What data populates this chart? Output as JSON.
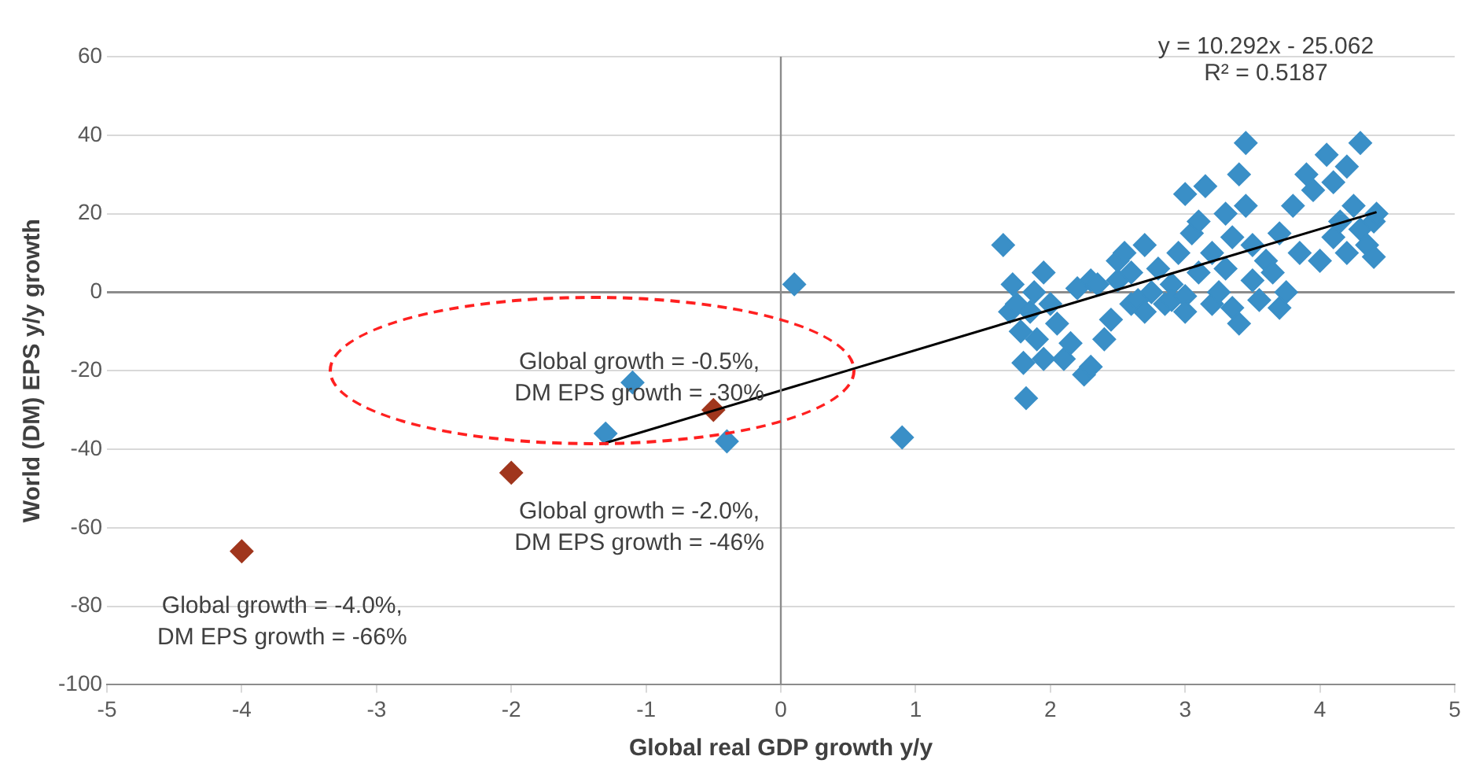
{
  "chart_data": {
    "type": "scatter",
    "xlabel": "Global real GDP growth y/y",
    "ylabel": "World (DM) EPS y/y growth",
    "xlim": [
      -5,
      5
    ],
    "xticks": [
      -5,
      -4,
      -3,
      -2,
      -1,
      0,
      1,
      2,
      3,
      4,
      5
    ],
    "ylim": [
      -100,
      60
    ],
    "yticks": [
      -100,
      -80,
      -60,
      -40,
      -20,
      0,
      20,
      40,
      60
    ],
    "grid": "y",
    "legend": false,
    "marker": "diamond",
    "series": [
      {
        "color": "#3a8fc7",
        "x": [
          -1.3,
          -1.1,
          -0.4,
          0.1,
          0.9,
          1.65,
          1.7,
          1.72,
          1.75,
          1.78,
          1.8,
          1.82,
          1.85,
          1.88,
          1.9,
          1.95,
          1.95,
          2.0,
          2.05,
          2.1,
          2.15,
          2.2,
          2.25,
          2.3,
          2.3,
          2.35,
          2.4,
          2.45,
          2.5,
          2.5,
          2.55,
          2.6,
          2.6,
          2.65,
          2.7,
          2.7,
          2.75,
          2.8,
          2.85,
          2.9,
          2.9,
          2.95,
          3.0,
          3.0,
          3.0,
          3.05,
          3.1,
          3.1,
          3.15,
          3.2,
          3.2,
          3.25,
          3.3,
          3.3,
          3.35,
          3.35,
          3.4,
          3.4,
          3.45,
          3.45,
          3.5,
          3.5,
          3.55,
          3.6,
          3.65,
          3.7,
          3.7,
          3.75,
          3.8,
          3.85,
          3.9,
          3.95,
          4.0,
          4.05,
          4.1,
          4.1,
          4.15,
          4.2,
          4.2,
          4.25,
          4.3,
          4.3,
          4.35,
          4.4,
          4.4,
          4.42
        ],
        "values": [
          -36,
          -23,
          -38,
          2,
          -37,
          12,
          -5,
          2,
          -3,
          -10,
          -18,
          -27,
          -5,
          0,
          -12,
          5,
          -17,
          -3,
          -8,
          -17,
          -13,
          1,
          -21,
          -19,
          3,
          2,
          -12,
          -7,
          3,
          8,
          10,
          5,
          -3,
          -2,
          12,
          -5,
          0,
          6,
          -3,
          2,
          -2,
          10,
          25,
          -1,
          -5,
          15,
          18,
          5,
          27,
          10,
          -3,
          0,
          20,
          6,
          14,
          -4,
          30,
          -8,
          38,
          22,
          12,
          3,
          -2,
          8,
          5,
          -4,
          15,
          0,
          22,
          10,
          30,
          26,
          8,
          35,
          28,
          14,
          18,
          10,
          32,
          22,
          38,
          16,
          12,
          18,
          9,
          20
        ]
      },
      {
        "color": "#a0361d",
        "x": [
          -4,
          -2,
          -0.5
        ],
        "values": [
          -66,
          -46,
          -30
        ]
      },
      {
        "type": "line",
        "color": "#000000",
        "marker": "none",
        "x": [
          -1.3,
          4.42
        ],
        "values": [
          -38.4,
          20.4
        ]
      }
    ],
    "annotations": [
      "y = 10.292x - 25.062\nR² = 0.5187",
      {
        "text": "Global growth = -0.5%,\nDM EPS growth = -30%",
        "x": -0.5,
        "y": -30
      },
      {
        "text": "Global growth = -2.0%,\nDM EPS growth = -46%",
        "x": -2,
        "y": -46
      },
      {
        "text": "Global growth = -4.0%,\nDM EPS growth = -66%",
        "x": -4,
        "y": -66
      }
    ]
  }
}
